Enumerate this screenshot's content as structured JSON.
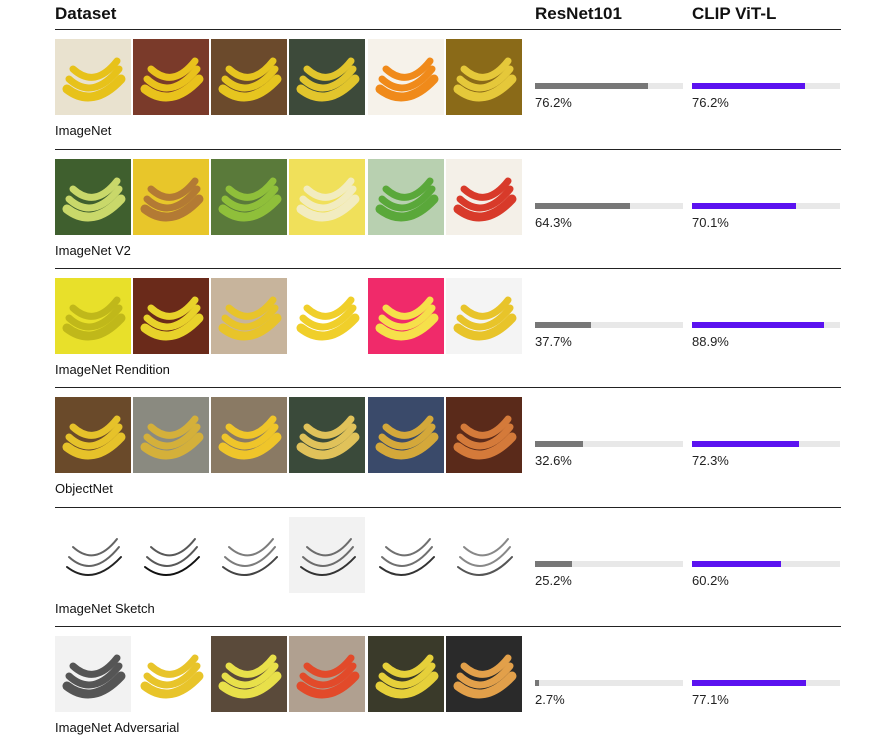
{
  "headers": {
    "dataset": "Dataset",
    "resnet": "ResNet101",
    "clip": "CLIP ViT-L"
  },
  "colors": {
    "resnet_bar": "#777777",
    "clip_bar": "#5b12f0",
    "track": "#e8e8e8"
  },
  "chart_data": {
    "type": "bar",
    "categories": [
      "ImageNet",
      "ImageNet V2",
      "ImageNet Rendition",
      "ObjectNet",
      "ImageNet Sketch",
      "ImageNet Adversarial"
    ],
    "series": [
      {
        "name": "ResNet101",
        "values": [
          76.2,
          64.3,
          37.7,
          32.6,
          25.2,
          2.7
        ],
        "labels": [
          "76.2%",
          "64.3%",
          "37.7%",
          "32.6%",
          "25.2%",
          "2.7%"
        ]
      },
      {
        "name": "CLIP ViT-L",
        "values": [
          76.2,
          70.1,
          88.9,
          72.3,
          60.2,
          77.1
        ],
        "labels": [
          "76.2%",
          "70.1%",
          "88.9%",
          "72.3%",
          "60.2%",
          "77.1%"
        ]
      }
    ],
    "ylim": [
      0,
      100
    ],
    "legend": "column headers"
  },
  "thumbnails": [
    [
      {
        "icon": "banana-bunch-icon",
        "bg": "#e9e2cf",
        "fg": "#e7c21a"
      },
      {
        "icon": "fruit-basket-icon",
        "bg": "#7a3a2a",
        "fg": "#e9c21c"
      },
      {
        "icon": "banana-bunch-icon",
        "bg": "#6b4a2c",
        "fg": "#e6c51f"
      },
      {
        "icon": "market-stall-icon",
        "bg": "#3d4a3a",
        "fg": "#e2c52c"
      },
      {
        "icon": "fruit-mix-icon",
        "bg": "#f6f2ea",
        "fg": "#f08a1a"
      },
      {
        "icon": "banana-pile-icon",
        "bg": "#8a6a18",
        "fg": "#e5c83a"
      }
    ],
    [
      {
        "icon": "banana-tree-icon",
        "bg": "#3f5f2e",
        "fg": "#c9d86a"
      },
      {
        "icon": "smoothie-glass-icon",
        "bg": "#e8c62a",
        "fg": "#b37a34"
      },
      {
        "icon": "green-banana-bunch-icon",
        "bg": "#5a7a3a",
        "fg": "#8fbf3a"
      },
      {
        "icon": "peeled-banana-icon",
        "bg": "#f0e05a",
        "fg": "#f2ecc0"
      },
      {
        "icon": "green-banana-bunch-icon",
        "bg": "#b8d0b0",
        "fg": "#5aa83a"
      },
      {
        "icon": "fruit-bowl-icon",
        "bg": "#f4f0e8",
        "fg": "#d83a2a"
      }
    ],
    [
      {
        "icon": "cartoon-face-icon",
        "bg": "#e8e02a",
        "fg": "#c0b81a"
      },
      {
        "icon": "toy-fruits-icon",
        "bg": "#6a2a1a",
        "fg": "#e8d22a"
      },
      {
        "icon": "drawn-banana-icon",
        "bg": "#c7b49c",
        "fg": "#e8c42a"
      },
      {
        "icon": "banana-bunch-icon",
        "bg": "#ffffff",
        "fg": "#f0cf2a"
      },
      {
        "icon": "peeled-banana-icon",
        "bg": "#f02a6a",
        "fg": "#f6e04a"
      },
      {
        "icon": "sticker-banana-icon",
        "bg": "#f4f4f4",
        "fg": "#e8c42a"
      }
    ],
    [
      {
        "icon": "banana-on-chair-icon",
        "bg": "#6a4a2a",
        "fg": "#e6c22a"
      },
      {
        "icon": "ripe-banana-icon",
        "bg": "#8a8a80",
        "fg": "#d4b03a"
      },
      {
        "icon": "hand-holding-banana-icon",
        "bg": "#8a7a64",
        "fg": "#efc52a"
      },
      {
        "icon": "hand-holding-banana-icon",
        "bg": "#3a4a3a",
        "fg": "#e0c25a"
      },
      {
        "icon": "banana-on-rug-icon",
        "bg": "#3a4a6a",
        "fg": "#d4a83a"
      },
      {
        "icon": "banana-on-tiles-icon",
        "bg": "#5a2a1a",
        "fg": "#d47a3a"
      }
    ],
    [
      {
        "icon": "sketch-bunch-icon",
        "bg": "#ffffff",
        "fg": "#222222"
      },
      {
        "icon": "sketch-banana-icon",
        "bg": "#ffffff",
        "fg": "#111111"
      },
      {
        "icon": "sketch-banana-icon",
        "bg": "#ffffff",
        "fg": "#444444"
      },
      {
        "icon": "sketch-bunch-icon",
        "bg": "#f2f2f2",
        "fg": "#333333"
      },
      {
        "icon": "sketch-peeled-icon",
        "bg": "#ffffff",
        "fg": "#333333"
      },
      {
        "icon": "sketch-bunch-icon",
        "bg": "#ffffff",
        "fg": "#555555"
      }
    ],
    [
      {
        "icon": "photo-frame-icon",
        "bg": "#f2f2f2",
        "fg": "#555555"
      },
      {
        "icon": "banana-plate-icon",
        "bg": "#ffffff",
        "fg": "#e8c42a"
      },
      {
        "icon": "banana-on-table-icon",
        "bg": "#5a4a3a",
        "fg": "#e8e04a"
      },
      {
        "icon": "banana-plate-icon",
        "bg": "#b0a090",
        "fg": "#e24a2a"
      },
      {
        "icon": "wall-with-papers-icon",
        "bg": "#3a3a2a",
        "fg": "#e6d03a"
      },
      {
        "icon": "building-at-night-icon",
        "bg": "#2a2a2a",
        "fg": "#e2a04a"
      }
    ]
  ]
}
